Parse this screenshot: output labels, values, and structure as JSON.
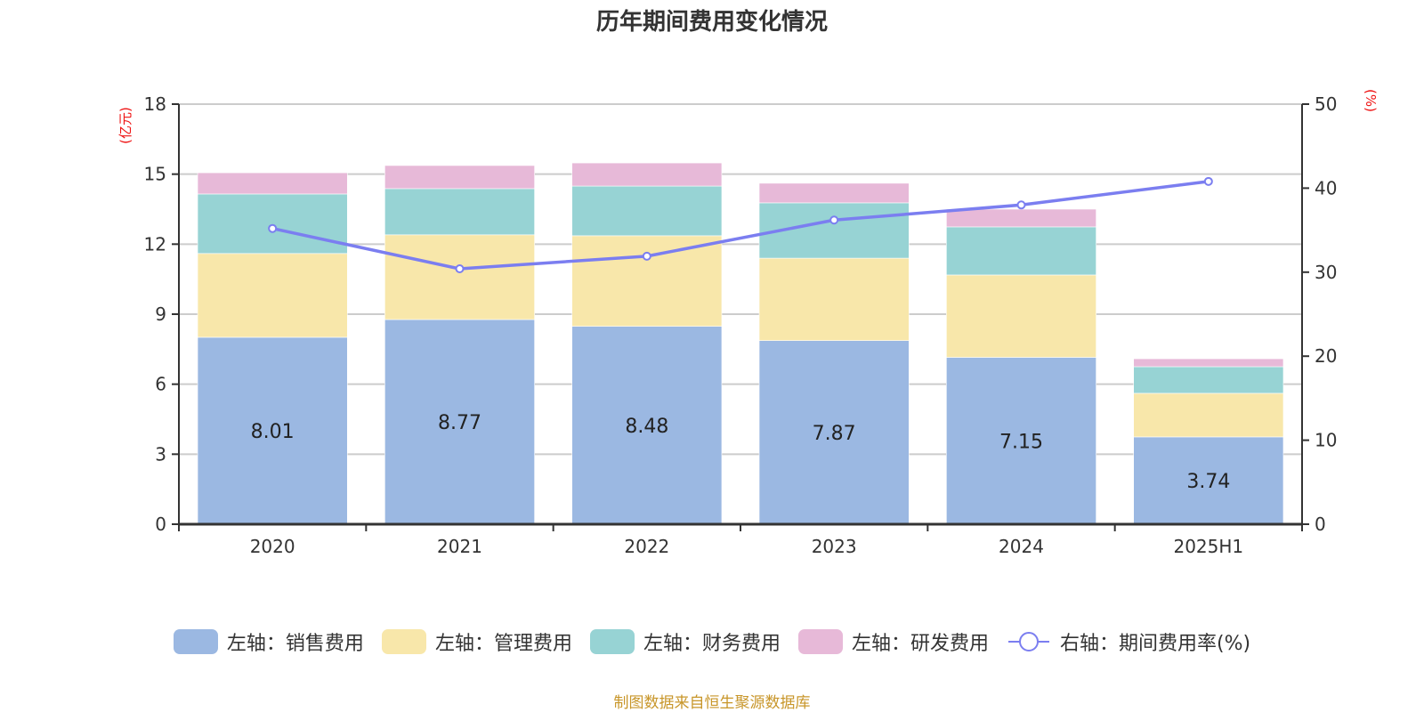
{
  "chart_data": {
    "type": "bar",
    "stacked": true,
    "title": "历年期间费用变化情况",
    "categories": [
      "2020",
      "2021",
      "2022",
      "2023",
      "2024",
      "2025H1"
    ],
    "left_axis": {
      "unit_label": "(亿元)",
      "ylim": [
        0,
        18
      ],
      "ticks": [
        0,
        3,
        6,
        9,
        12,
        15,
        18
      ]
    },
    "right_axis": {
      "unit_label": "(%)",
      "ylim": [
        0,
        50
      ],
      "ticks": [
        0,
        10,
        20,
        30,
        40,
        50
      ]
    },
    "series": [
      {
        "name": "左轴：销售费用",
        "axis": "left",
        "type": "bar",
        "color": "#9bb8e2",
        "values": [
          8.01,
          8.77,
          8.48,
          7.87,
          7.15,
          3.74
        ],
        "show_labels": true
      },
      {
        "name": "左轴：管理费用",
        "axis": "left",
        "type": "bar",
        "color": "#f8e7aa",
        "values": [
          3.59,
          3.63,
          3.88,
          3.53,
          3.53,
          1.87
        ]
      },
      {
        "name": "左轴：财务费用",
        "axis": "left",
        "type": "bar",
        "color": "#97d3d4",
        "values": [
          2.55,
          1.98,
          2.13,
          2.37,
          2.06,
          1.14
        ]
      },
      {
        "name": "左轴：研发费用",
        "axis": "left",
        "type": "bar",
        "color": "#e7b9d8",
        "values": [
          0.91,
          0.99,
          0.99,
          0.84,
          0.76,
          0.34
        ]
      },
      {
        "name": "右轴：期间费用率(%)",
        "axis": "right",
        "type": "line",
        "color": "#7b7ef0",
        "values": [
          35.2,
          30.4,
          31.9,
          36.2,
          38.0,
          40.8
        ]
      }
    ],
    "grid": true,
    "legend_position": "bottom",
    "source": "制图数据来自恒生聚源数据库"
  }
}
